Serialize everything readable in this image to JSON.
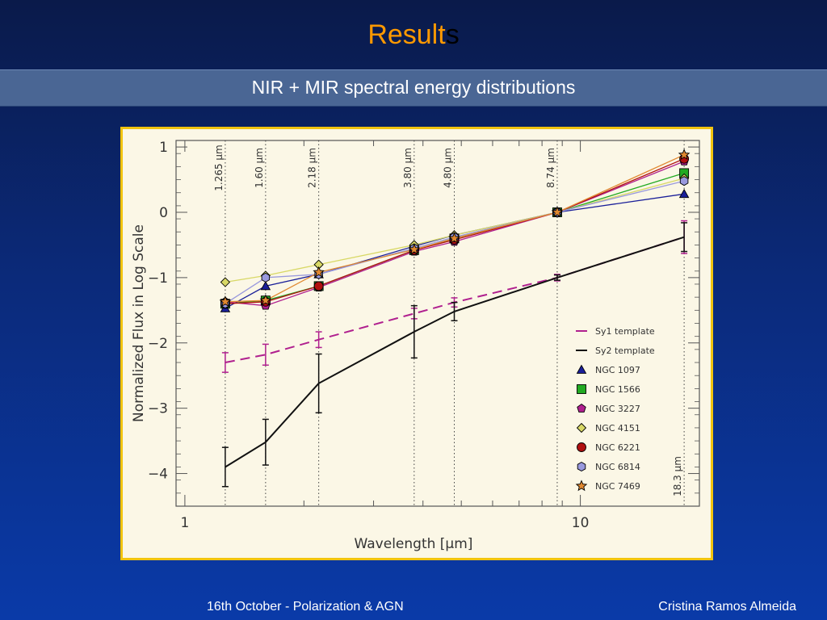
{
  "slide": {
    "title_main": "Result",
    "title_suffix": "s",
    "subtitle": "NIR + MIR spectral energy distributions",
    "footer_left": "16th October - Polarization & AGN",
    "footer_right": "Cristina Ramos Almeida"
  },
  "colors": {
    "title_accent": "#ff9900",
    "frame_border": "#f1c40f"
  },
  "chart_data": {
    "type": "line",
    "xlabel": "Wavelength [μm]",
    "ylabel": "Normalized Flux in Log Scale",
    "x_scale": "log",
    "xlim": [
      0.95,
      20
    ],
    "ylim": [
      -4.5,
      1.1
    ],
    "x_ticks": [
      1,
      10
    ],
    "x_tick_labels": [
      "1",
      "10"
    ],
    "y_ticks": [
      1,
      0,
      -1,
      -2,
      -3,
      -4
    ],
    "y_tick_labels": [
      "1",
      "0",
      "−1",
      "−2",
      "−3",
      "−4"
    ],
    "reference_lines": [
      {
        "x": 1.265,
        "label": "1.265 μm"
      },
      {
        "x": 1.6,
        "label": "1.60 μm"
      },
      {
        "x": 2.18,
        "label": "2.18 μm"
      },
      {
        "x": 3.8,
        "label": "3.80 μm"
      },
      {
        "x": 4.8,
        "label": "4.80 μm"
      },
      {
        "x": 8.74,
        "label": "8.74 μm"
      },
      {
        "x": 18.3,
        "label": "18.3 μm"
      }
    ],
    "series": [
      {
        "name": "Sy1 template",
        "color": "#b0208f",
        "style": "dashed",
        "marker": "none",
        "x": [
          1.265,
          1.6,
          2.18,
          3.8,
          4.8,
          8.74,
          18.3
        ],
        "y": [
          -2.3,
          -2.18,
          -1.95,
          -1.55,
          -1.38,
          -1.0,
          -0.38
        ],
        "err": [
          0.15,
          0.16,
          0.12,
          0.08,
          0.07,
          0.05,
          0.25
        ]
      },
      {
        "name": "Sy2 template",
        "color": "#111111",
        "style": "solid",
        "marker": "none",
        "x": [
          1.265,
          1.6,
          2.18,
          3.8,
          4.8,
          8.74,
          18.3
        ],
        "y": [
          -3.9,
          -3.52,
          -2.62,
          -1.83,
          -1.52,
          -1.0,
          -0.38
        ],
        "err": [
          0.3,
          0.35,
          0.45,
          0.4,
          0.14,
          0.04,
          0.22
        ]
      },
      {
        "name": "NGC 1097",
        "color": "#1a1f99",
        "marker": "triangle",
        "x": [
          1.265,
          1.6,
          2.18,
          3.8,
          4.8,
          8.74,
          18.3
        ],
        "y": [
          -1.47,
          -1.13,
          -0.95,
          -0.52,
          -0.35,
          0.0,
          0.28
        ]
      },
      {
        "name": "NGC 1566",
        "color": "#22aa22",
        "marker": "square",
        "x": [
          1.265,
          1.6,
          2.18,
          3.8,
          4.8,
          8.74,
          18.3
        ],
        "y": [
          -1.4,
          -1.35,
          -1.13,
          -0.58,
          -0.4,
          0.0,
          0.6
        ]
      },
      {
        "name": "NGC 3227",
        "color": "#b0208f",
        "marker": "pentagon",
        "x": [
          1.265,
          1.6,
          2.18,
          3.8,
          4.8,
          8.74,
          18.3
        ],
        "y": [
          -1.37,
          -1.43,
          -1.15,
          -0.6,
          -0.45,
          0.0,
          0.78
        ]
      },
      {
        "name": "NGC 4151",
        "color": "#d8d866",
        "marker": "diamond",
        "x": [
          1.265,
          1.6,
          2.18,
          3.8,
          4.8,
          8.74,
          18.3
        ],
        "y": [
          -1.07,
          -0.97,
          -0.8,
          -0.5,
          -0.35,
          0.0,
          0.52
        ]
      },
      {
        "name": "NGC 6221",
        "color": "#b01010",
        "marker": "circle",
        "x": [
          1.265,
          1.6,
          2.18,
          3.8,
          4.8,
          8.74,
          18.3
        ],
        "y": [
          -1.4,
          -1.37,
          -1.13,
          -0.58,
          -0.42,
          0.0,
          0.82
        ]
      },
      {
        "name": "NGC 6814",
        "color": "#9999dd",
        "marker": "hexagon",
        "x": [
          1.265,
          1.6,
          2.18,
          3.8,
          4.8,
          8.74,
          18.3
        ],
        "y": [
          -1.4,
          -1.0,
          -0.95,
          -0.55,
          -0.38,
          0.0,
          0.48
        ]
      },
      {
        "name": "NGC 7469",
        "color": "#e08830",
        "marker": "star",
        "x": [
          1.265,
          1.6,
          2.18,
          3.8,
          4.8,
          8.74,
          18.3
        ],
        "y": [
          -1.37,
          -1.35,
          -0.92,
          -0.57,
          -0.4,
          0.0,
          0.88
        ]
      }
    ],
    "legend": "bottom-right",
    "grid": false
  }
}
